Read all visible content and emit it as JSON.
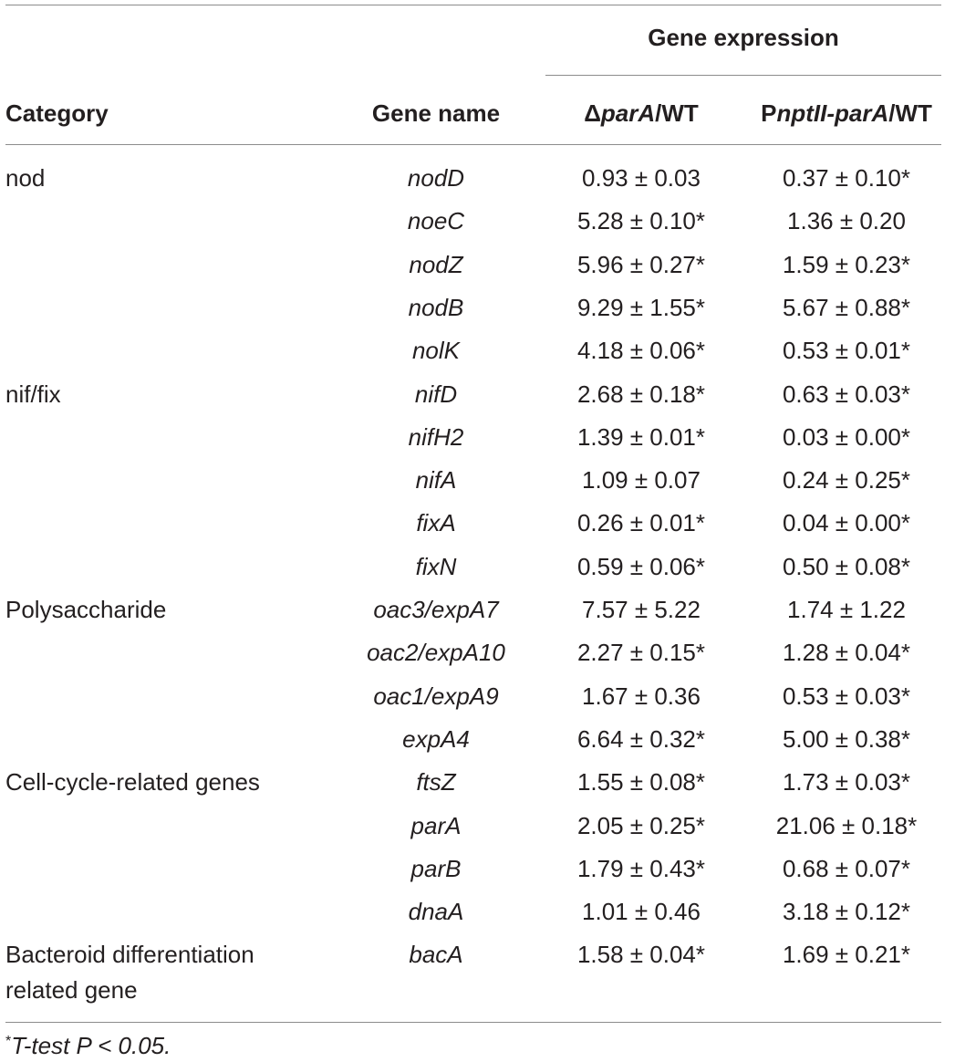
{
  "header": {
    "group_label": "Gene expression",
    "category": "Category",
    "gene_name": "Gene name",
    "col1_delta": "Δ",
    "col1_italic": "parA",
    "col1_rest": "/WT",
    "col2_lead": "P",
    "col2_italic": "nptII-parA",
    "col2_rest": "/WT"
  },
  "rows": [
    {
      "category": "nod",
      "gene": "nodD",
      "delta": "0.93 ± 0.03",
      "pnpt": "0.37 ± 0.10*"
    },
    {
      "category": "",
      "gene": "noeC",
      "delta": "5.28 ± 0.10*",
      "pnpt": "1.36 ± 0.20"
    },
    {
      "category": "",
      "gene": "nodZ",
      "delta": "5.96 ± 0.27*",
      "pnpt": "1.59 ± 0.23*"
    },
    {
      "category": "",
      "gene": "nodB",
      "delta": "9.29 ± 1.55*",
      "pnpt": "5.67 ± 0.88*"
    },
    {
      "category": "",
      "gene": "nolK",
      "delta": "4.18 ± 0.06*",
      "pnpt": "0.53 ± 0.01*"
    },
    {
      "category": "nif/fix",
      "gene": "nifD",
      "delta": "2.68 ± 0.18*",
      "pnpt": "0.63 ± 0.03*"
    },
    {
      "category": "",
      "gene": "nifH2",
      "delta": "1.39 ± 0.01*",
      "pnpt": "0.03 ± 0.00*"
    },
    {
      "category": "",
      "gene": "nifA",
      "delta": "1.09 ± 0.07",
      "pnpt": "0.24 ± 0.25*"
    },
    {
      "category": "",
      "gene": "fixA",
      "delta": "0.26 ± 0.01*",
      "pnpt": "0.04 ± 0.00*"
    },
    {
      "category": "",
      "gene": "fixN",
      "delta": "0.59 ± 0.06*",
      "pnpt": "0.50 ± 0.08*"
    },
    {
      "category": "Polysaccharide",
      "gene": "oac3/expA7",
      "delta": "7.57 ± 5.22",
      "pnpt": "1.74 ± 1.22"
    },
    {
      "category": "",
      "gene": "oac2/expA10",
      "delta": "2.27 ± 0.15*",
      "pnpt": "1.28 ± 0.04*"
    },
    {
      "category": "",
      "gene": "oac1/expA9",
      "delta": "1.67 ± 0.36",
      "pnpt": "0.53 ± 0.03*"
    },
    {
      "category": "",
      "gene": "expA4",
      "delta": "6.64 ± 0.32*",
      "pnpt": "5.00 ± 0.38*"
    },
    {
      "category": "Cell-cycle-related genes",
      "gene": "ftsZ",
      "delta": "1.55 ± 0.08*",
      "pnpt": "1.73 ± 0.03*"
    },
    {
      "category": "",
      "gene": "parA",
      "delta": "2.05 ± 0.25*",
      "pnpt": "21.06 ± 0.18*"
    },
    {
      "category": "",
      "gene": "parB",
      "delta": "1.79 ± 0.43*",
      "pnpt": "0.68 ± 0.07*"
    },
    {
      "category": "",
      "gene": "dnaA",
      "delta": "1.01 ± 0.46",
      "pnpt": "3.18 ± 0.12*"
    },
    {
      "category": "Bacteroid differentiation",
      "gene": "bacA",
      "delta": "1.58 ± 0.04*",
      "pnpt": "1.69 ± 0.21*"
    }
  ],
  "last_row_category_line2": "related gene",
  "footnote": {
    "mark": "*",
    "text": "T-test P < 0.05."
  }
}
